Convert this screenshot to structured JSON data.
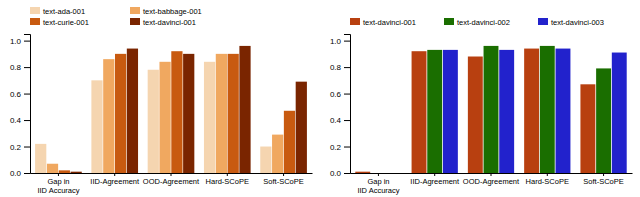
{
  "chart_data": [
    {
      "type": "bar",
      "categories": [
        "Gap in\nIID Accuracy",
        "IID-Agreement",
        "OOD-Agreement",
        "Hard-SCoPE",
        "Soft-SCoPE"
      ],
      "series": [
        {
          "name": "text-ada-001",
          "color": "#f5d5b0",
          "values": [
            0.22,
            0.7,
            0.78,
            0.84,
            0.2
          ]
        },
        {
          "name": "text-babbage-001",
          "color": "#f0a860",
          "values": [
            0.07,
            0.86,
            0.84,
            0.9,
            0.29
          ]
        },
        {
          "name": "text-curie-001",
          "color": "#c85a10",
          "values": [
            0.02,
            0.9,
            0.92,
            0.9,
            0.47
          ]
        },
        {
          "name": "text-davinci-001",
          "color": "#7a2500",
          "values": [
            0.01,
            0.94,
            0.9,
            0.96,
            0.69
          ]
        }
      ],
      "ylim": [
        0,
        1.05
      ],
      "yticks": [
        {
          "value": 0,
          "label": "0.0"
        },
        0.2,
        0.4,
        0.6,
        0.8,
        {
          "value": 1,
          "label": "1.0"
        }
      ],
      "grid": false,
      "legend": "upper left"
    },
    {
      "type": "bar",
      "categories": [
        "Gap in\nIID Accuracy",
        "IID-Agreement",
        "OOD-Agreement",
        "Hard-SCoPE",
        "Soft-SCoPE"
      ],
      "series": [
        {
          "name": "text-davinci-001",
          "color": "#b84010",
          "values": [
            0.01,
            0.92,
            0.88,
            0.94,
            0.67
          ]
        },
        {
          "name": "text-davinci-002",
          "color": "#1a6e00",
          "values": [
            0.0,
            0.93,
            0.96,
            0.96,
            0.79
          ]
        },
        {
          "name": "text-davinci-003",
          "color": "#2222cc",
          "values": [
            0.0,
            0.93,
            0.93,
            0.94,
            0.91
          ]
        }
      ],
      "ylim": [
        0,
        1.05
      ],
      "yticks": [
        {
          "value": 0,
          "label": "0.0"
        },
        0.2,
        0.4,
        0.6,
        0.8,
        {
          "value": 1,
          "label": "1.0"
        }
      ],
      "grid": false,
      "legend": "upper left"
    }
  ]
}
